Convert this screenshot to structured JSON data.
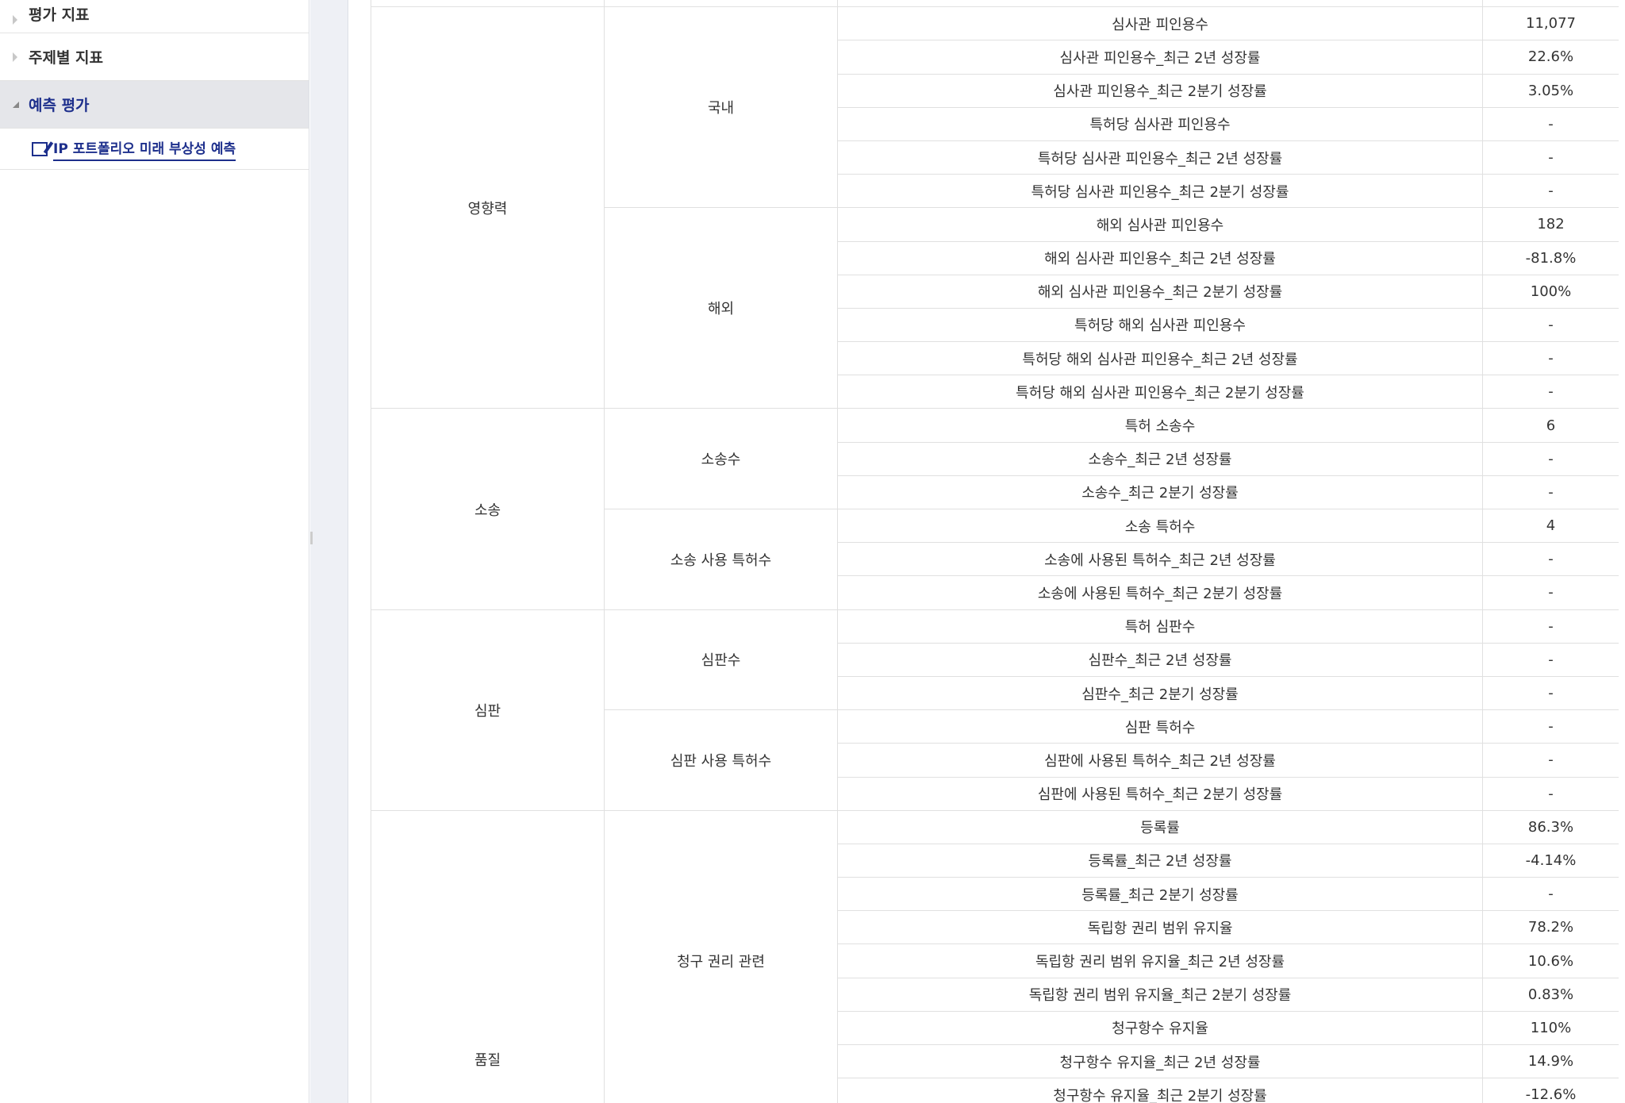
{
  "sidebar": {
    "items": [
      {
        "label": "평가 지표"
      },
      {
        "label": "주제별 지표"
      },
      {
        "label": "예측 평가"
      }
    ],
    "subitem": "IP 포트폴리오 미래 부상성 예측"
  },
  "groups": [
    {
      "name": "영향력",
      "subs": [
        {
          "name": "국내",
          "rows": [
            [
              "심사관 피인용수",
              "11,077"
            ],
            [
              "심사관 피인용수_최근 2년 성장률",
              "22.6%"
            ],
            [
              "심사관 피인용수_최근 2분기 성장률",
              "3.05%"
            ],
            [
              "특허당 심사관 피인용수",
              "-"
            ],
            [
              "특허당 심사관 피인용수_최근 2년 성장률",
              "-"
            ],
            [
              "특허당 심사관 피인용수_최근 2분기 성장률",
              "-"
            ]
          ]
        },
        {
          "name": "해외",
          "rows": [
            [
              "해외 심사관 피인용수",
              "182"
            ],
            [
              "해외 심사관 피인용수_최근 2년 성장률",
              "-81.8%"
            ],
            [
              "해외 심사관 피인용수_최근 2분기 성장률",
              "100%"
            ],
            [
              "특허당 해외 심사관 피인용수",
              "-"
            ],
            [
              "특허당 해외 심사관 피인용수_최근 2년 성장률",
              "-"
            ],
            [
              "특허당 해외 심사관 피인용수_최근 2분기 성장률",
              "-"
            ]
          ]
        }
      ]
    },
    {
      "name": "소송",
      "subs": [
        {
          "name": "소송수",
          "rows": [
            [
              "특허 소송수",
              "6"
            ],
            [
              "소송수_최근 2년 성장률",
              "-"
            ],
            [
              "소송수_최근 2분기 성장률",
              "-"
            ]
          ]
        },
        {
          "name": "소송 사용 특허수",
          "rows": [
            [
              "소송 특허수",
              "4"
            ],
            [
              "소송에 사용된 특허수_최근 2년 성장률",
              "-"
            ],
            [
              "소송에 사용된 특허수_최근 2분기 성장률",
              "-"
            ]
          ]
        }
      ]
    },
    {
      "name": "심판",
      "subs": [
        {
          "name": "심판수",
          "rows": [
            [
              "특허 심판수",
              "-"
            ],
            [
              "심판수_최근 2년 성장률",
              "-"
            ],
            [
              "심판수_최근 2분기 성장률",
              "-"
            ]
          ]
        },
        {
          "name": "심판 사용 특허수",
          "rows": [
            [
              "심판 특허수",
              "-"
            ],
            [
              "심판에 사용된 특허수_최근 2년 성장률",
              "-"
            ],
            [
              "심판에 사용된 특허수_최근 2분기 성장률",
              "-"
            ]
          ]
        }
      ]
    },
    {
      "name": "품질",
      "subs": [
        {
          "name": "청구 권리 관련",
          "rows": [
            [
              "등록률",
              "86.3%"
            ],
            [
              "등록률_최근 2년 성장률",
              "-4.14%"
            ],
            [
              "등록률_최근 2분기 성장률",
              "-"
            ],
            [
              "독립항 권리 범위 유지율",
              "78.2%"
            ],
            [
              "독립항 권리 범위 유지율_최근 2년 성장률",
              "10.6%"
            ],
            [
              "독립항 권리 범위 유지율_최근 2분기 성장률",
              "0.83%"
            ],
            [
              "청구항수 유지율",
              "110%"
            ],
            [
              "청구항수 유지율_최근 2년 성장률",
              "14.9%"
            ],
            [
              "청구항수 유지율_최근 2분기 성장률",
              "-12.6%"
            ]
          ]
        }
      ]
    }
  ]
}
